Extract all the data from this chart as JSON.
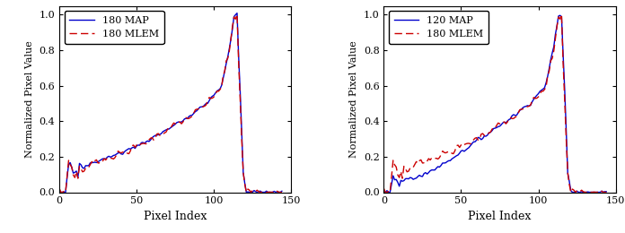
{
  "left_legend": [
    "180 MAP",
    "180 MLEM"
  ],
  "right_legend": [
    "120 MAP",
    "180 MLEM"
  ],
  "xlabel": "Pixel Index",
  "ylabel": "Normalized Pixel Value",
  "xlim": [
    0,
    150
  ],
  "ylim": [
    0,
    1.05
  ],
  "xticks": [
    0,
    50,
    100,
    150
  ],
  "yticks": [
    0,
    0.2,
    0.4,
    0.6,
    0.8,
    1.0
  ],
  "line1_color": "#0000CC",
  "line2_color": "#CC0000",
  "background_color": "#ffffff",
  "figsize": [
    6.96,
    2.6
  ],
  "dpi": 100
}
